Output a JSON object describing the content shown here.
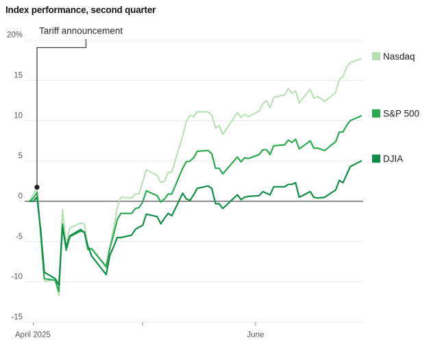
{
  "chart_data": {
    "type": "line",
    "title": "Index performance, second quarter",
    "unit": "%",
    "grid": "horizontal",
    "legend_position": "right",
    "annotation": {
      "text": "Tariff announcement",
      "date": "2025-04-02",
      "value": 1.74,
      "series": "Nasdaq"
    },
    "x_axis": {
      "start_date": "2025-03-31",
      "end_date": "2025-06-30",
      "ticks": [
        {
          "date": "2025-04-01",
          "label": "April 2025"
        },
        {
          "date": "2025-05-01",
          "label": ""
        },
        {
          "date": "2025-06-01",
          "label": "June"
        }
      ]
    },
    "y_axis": {
      "min": -15,
      "max": 20,
      "ticks": [
        20,
        15,
        10,
        5,
        0,
        -5,
        -10,
        -15
      ],
      "tick_labels": [
        "20%",
        "15",
        "10",
        "5",
        "0",
        "-5",
        "-10",
        "-15"
      ],
      "zero_line": 0
    },
    "dates": [
      "2025-03-31",
      "2025-04-01",
      "2025-04-02",
      "2025-04-03",
      "2025-04-04",
      "2025-04-07",
      "2025-04-08",
      "2025-04-09",
      "2025-04-10",
      "2025-04-11",
      "2025-04-14",
      "2025-04-15",
      "2025-04-16",
      "2025-04-17",
      "2025-04-21",
      "2025-04-22",
      "2025-04-23",
      "2025-04-24",
      "2025-04-25",
      "2025-04-28",
      "2025-04-29",
      "2025-04-30",
      "2025-05-01",
      "2025-05-02",
      "2025-05-05",
      "2025-05-06",
      "2025-05-07",
      "2025-05-08",
      "2025-05-09",
      "2025-05-12",
      "2025-05-13",
      "2025-05-14",
      "2025-05-15",
      "2025-05-16",
      "2025-05-19",
      "2025-05-20",
      "2025-05-21",
      "2025-05-22",
      "2025-05-23",
      "2025-05-27",
      "2025-05-28",
      "2025-05-29",
      "2025-05-30",
      "2025-06-02",
      "2025-06-03",
      "2025-06-04",
      "2025-06-05",
      "2025-06-06",
      "2025-06-09",
      "2025-06-10",
      "2025-06-11",
      "2025-06-12",
      "2025-06-13",
      "2025-06-16",
      "2025-06-17",
      "2025-06-18",
      "2025-06-20",
      "2025-06-23",
      "2025-06-24",
      "2025-06-25",
      "2025-06-26",
      "2025-06-27",
      "2025-06-30"
    ],
    "series": [
      {
        "name": "Nasdaq",
        "color": "#b6deb2",
        "values": [
          0,
          0.9,
          1.7,
          -4.3,
          -9.9,
          -9.8,
          -11.7,
          -1.0,
          -5.3,
          -3.3,
          -2.7,
          -2.8,
          -5.7,
          -5.9,
          -8.3,
          -5.8,
          -3.4,
          -0.8,
          0.5,
          0.4,
          0.9,
          0.9,
          2.4,
          3.9,
          3.2,
          2.3,
          2.5,
          3.6,
          3.6,
          8.1,
          9.9,
          10.7,
          10.5,
          11.1,
          11.1,
          10.7,
          9.1,
          9.4,
          8.3,
          11.0,
          10.4,
          10.8,
          10.5,
          11.2,
          12.1,
          12.5,
          11.6,
          12.9,
          13.2,
          14.0,
          13.4,
          13.7,
          12.2,
          13.9,
          12.8,
          13.0,
          12.4,
          13.5,
          15.1,
          15.5,
          16.6,
          17.2,
          17.7
        ]
      },
      {
        "name": "S&P 500",
        "color": "#2aa94f",
        "values": [
          0,
          0.4,
          1.1,
          -3.8,
          -9.6,
          -9.8,
          -11.2,
          -2.8,
          -6.1,
          -4.4,
          -3.7,
          -3.8,
          -6.0,
          -5.9,
          -8.1,
          -5.8,
          -4.2,
          -2.3,
          -1.5,
          -1.5,
          -0.9,
          -0.8,
          -0.1,
          1.3,
          0.7,
          -0.1,
          0.3,
          0.9,
          0.9,
          4.1,
          4.9,
          5.0,
          5.4,
          6.2,
          6.3,
          5.9,
          4.1,
          4.1,
          3.4,
          5.5,
          4.9,
          5.4,
          5.3,
          5.8,
          6.4,
          6.4,
          5.8,
          6.9,
          7.0,
          7.6,
          7.3,
          7.7,
          6.5,
          7.5,
          6.6,
          6.6,
          6.3,
          7.4,
          8.6,
          8.6,
          9.4,
          10.0,
          10.6
        ]
      },
      {
        "name": "DJIA",
        "color": "#0f8d45",
        "values": [
          0,
          0.0,
          0.5,
          -3.5,
          -8.8,
          -9.6,
          -10.4,
          -3.3,
          -5.7,
          -4.3,
          -3.5,
          -3.9,
          -5.6,
          -6.8,
          -9.1,
          -6.7,
          -5.7,
          -4.5,
          -4.5,
          -4.2,
          -3.5,
          -3.2,
          -3.0,
          -1.6,
          -1.9,
          -2.8,
          -2.1,
          -1.5,
          -1.8,
          1.0,
          0.3,
          0.1,
          0.8,
          1.6,
          1.9,
          1.6,
          -0.3,
          -0.3,
          -0.9,
          0.8,
          0.2,
          0.5,
          0.6,
          0.7,
          1.2,
          1.0,
          0.8,
          1.8,
          1.8,
          2.1,
          2.1,
          2.3,
          0.5,
          1.2,
          0.5,
          0.4,
          0.5,
          1.4,
          2.6,
          2.3,
          3.3,
          4.3,
          5.0
        ]
      }
    ],
    "colors": {
      "zero_line": "#8c8c8c",
      "gridline": "#e9e9e9",
      "annotation_line": "#3f3f3f",
      "annotation_dot": "#1f1f1f"
    }
  }
}
